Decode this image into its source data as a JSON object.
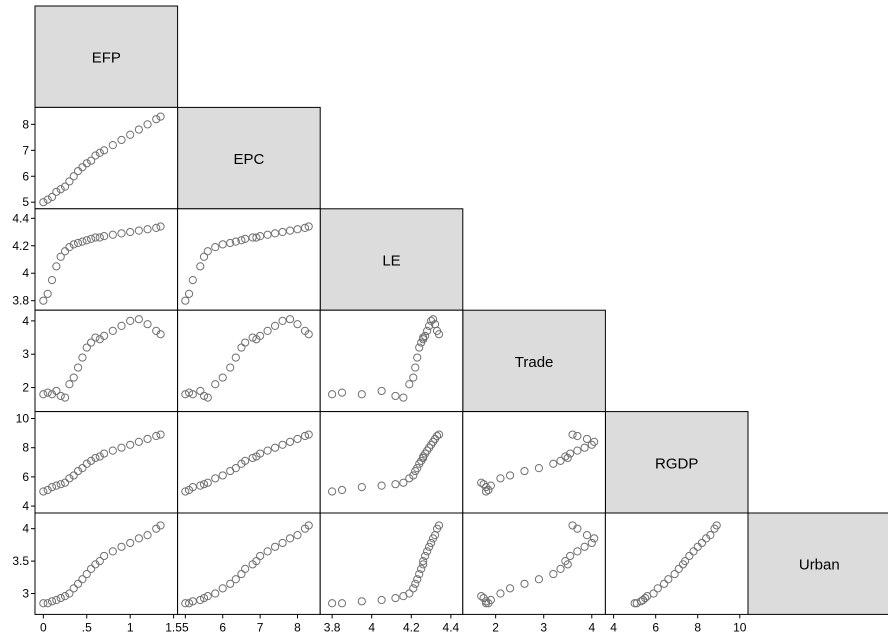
{
  "chart_data": {
    "type": "scatter-matrix",
    "variables": [
      "EFP",
      "EPC",
      "LE",
      "Trade",
      "RGDP",
      "Urban"
    ],
    "bottom_ticks": [
      [
        "0",
        ".5",
        "1",
        "1.5"
      ],
      [
        "5",
        "6",
        "7",
        "8"
      ],
      [
        "3.8",
        "4",
        "4.2",
        "4.4"
      ],
      [
        "2",
        "3",
        "4"
      ],
      [
        "4",
        "6",
        "8",
        "10"
      ]
    ],
    "left_ticks": [
      null,
      [
        "5",
        "6",
        "7",
        "8"
      ],
      [
        "3.8",
        "4",
        "4.2",
        "4.4"
      ],
      [
        "2",
        "3",
        "4"
      ],
      [
        "4",
        "6",
        "8",
        "10"
      ],
      [
        "3",
        "3.5",
        "4"
      ]
    ],
    "ranges": {
      "EFP": [
        -0.05,
        1.5
      ],
      "EPC": [
        4.9,
        8.5
      ],
      "LE": [
        3.76,
        4.44
      ],
      "Trade": [
        1.4,
        4.2
      ],
      "RGDP": [
        3.8,
        10.2
      ],
      "Urban": [
        2.74,
        4.18
      ]
    },
    "colors": {
      "marker": "#707070",
      "label_box": "#dcdcdc"
    },
    "observations": [
      {
        "EFP": 0.0,
        "EPC": 5.0,
        "LE": 3.8,
        "Trade": 1.8,
        "RGDP": 5.0,
        "Urban": 2.85
      },
      {
        "EFP": 0.05,
        "EPC": 5.1,
        "LE": 3.85,
        "Trade": 1.85,
        "RGDP": 5.1,
        "Urban": 2.85
      },
      {
        "EFP": 0.1,
        "EPC": 5.2,
        "LE": 3.95,
        "Trade": 1.8,
        "RGDP": 5.3,
        "Urban": 2.88
      },
      {
        "EFP": 0.15,
        "EPC": 5.4,
        "LE": 4.05,
        "Trade": 1.9,
        "RGDP": 5.4,
        "Urban": 2.9
      },
      {
        "EFP": 0.2,
        "EPC": 5.5,
        "LE": 4.12,
        "Trade": 1.75,
        "RGDP": 5.5,
        "Urban": 2.93
      },
      {
        "EFP": 0.25,
        "EPC": 5.6,
        "LE": 4.16,
        "Trade": 1.7,
        "RGDP": 5.6,
        "Urban": 2.96
      },
      {
        "EFP": 0.3,
        "EPC": 5.8,
        "LE": 4.19,
        "Trade": 2.1,
        "RGDP": 5.9,
        "Urban": 3.0
      },
      {
        "EFP": 0.35,
        "EPC": 6.0,
        "LE": 4.21,
        "Trade": 2.3,
        "RGDP": 6.1,
        "Urban": 3.08
      },
      {
        "EFP": 0.4,
        "EPC": 6.2,
        "LE": 4.22,
        "Trade": 2.6,
        "RGDP": 6.4,
        "Urban": 3.15
      },
      {
        "EFP": 0.45,
        "EPC": 6.35,
        "LE": 4.23,
        "Trade": 2.9,
        "RGDP": 6.6,
        "Urban": 3.22
      },
      {
        "EFP": 0.5,
        "EPC": 6.5,
        "LE": 4.24,
        "Trade": 3.2,
        "RGDP": 6.9,
        "Urban": 3.3
      },
      {
        "EFP": 0.55,
        "EPC": 6.6,
        "LE": 4.25,
        "Trade": 3.35,
        "RGDP": 7.1,
        "Urban": 3.38
      },
      {
        "EFP": 0.6,
        "EPC": 6.8,
        "LE": 4.26,
        "Trade": 3.5,
        "RGDP": 7.3,
        "Urban": 3.45
      },
      {
        "EFP": 0.65,
        "EPC": 6.9,
        "LE": 4.26,
        "Trade": 3.45,
        "RGDP": 7.4,
        "Urban": 3.5
      },
      {
        "EFP": 0.7,
        "EPC": 7.0,
        "LE": 4.27,
        "Trade": 3.55,
        "RGDP": 7.6,
        "Urban": 3.58
      },
      {
        "EFP": 0.8,
        "EPC": 7.2,
        "LE": 4.28,
        "Trade": 3.7,
        "RGDP": 7.8,
        "Urban": 3.65
      },
      {
        "EFP": 0.9,
        "EPC": 7.4,
        "LE": 4.29,
        "Trade": 3.85,
        "RGDP": 8.0,
        "Urban": 3.72
      },
      {
        "EFP": 1.0,
        "EPC": 7.6,
        "LE": 4.3,
        "Trade": 4.0,
        "RGDP": 8.2,
        "Urban": 3.78
      },
      {
        "EFP": 1.1,
        "EPC": 7.8,
        "LE": 4.31,
        "Trade": 4.05,
        "RGDP": 8.4,
        "Urban": 3.85
      },
      {
        "EFP": 1.2,
        "EPC": 8.0,
        "LE": 4.32,
        "Trade": 3.9,
        "RGDP": 8.6,
        "Urban": 3.9
      },
      {
        "EFP": 1.3,
        "EPC": 8.2,
        "LE": 4.33,
        "Trade": 3.7,
        "RGDP": 8.8,
        "Urban": 4.0
      },
      {
        "EFP": 1.35,
        "EPC": 8.3,
        "LE": 4.34,
        "Trade": 3.6,
        "RGDP": 8.9,
        "Urban": 4.05
      }
    ]
  }
}
